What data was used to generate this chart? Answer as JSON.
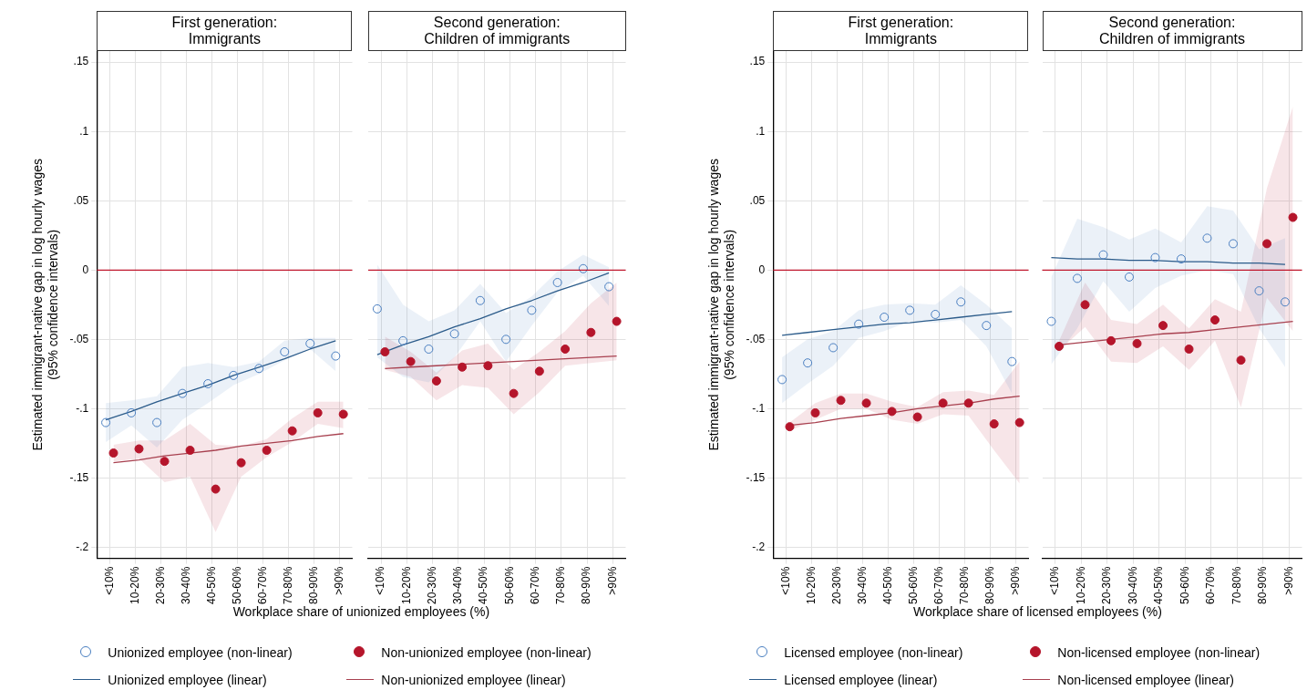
{
  "chart_data": [
    {
      "type": "scatter",
      "title": "First generation:\nImmigrants",
      "xlabel": "Workplace share of unionized employees (%)",
      "ylabel": "Estimated immigrant-native gap in log hourly wages\n(95% confidence intervals)",
      "ylim": [
        -0.208,
        0.158
      ],
      "categories": [
        "<10%",
        "10-20%",
        "20-30%",
        "30-40%",
        "40-50%",
        "50-60%",
        "60-70%",
        "70-80%",
        "80-90%",
        ">90%"
      ],
      "yticks": [
        {
          "value": 0.15,
          "label": ".15"
        },
        {
          "value": 0.1,
          "label": ".1"
        },
        {
          "value": 0.05,
          "label": ".05"
        },
        0,
        {
          "value": -0.05,
          "label": "-.05"
        },
        {
          "value": -0.1,
          "label": "-.1"
        },
        {
          "value": -0.15,
          "label": "-.15"
        },
        {
          "value": -0.2,
          "label": "-.2"
        }
      ],
      "grid": true,
      "legend": "bottom",
      "ref_lines": [
        {
          "axis": "y",
          "value": 0,
          "color": "#c0162c"
        }
      ],
      "series": [
        {
          "name": "Unionized employee (non-linear)",
          "type": "scatter",
          "marker": "circle",
          "color": "#4a7fc1",
          "values": [
            -0.11,
            -0.103,
            -0.11,
            -0.089,
            -0.082,
            -0.076,
            -0.071,
            -0.059,
            -0.053,
            -0.062
          ],
          "lower": [
            -0.124,
            -0.112,
            -0.128,
            -0.108,
            -0.096,
            -0.083,
            -0.075,
            -0.065,
            -0.057,
            -0.073
          ],
          "upper": [
            -0.096,
            -0.094,
            -0.091,
            -0.07,
            -0.067,
            -0.07,
            -0.066,
            -0.051,
            -0.049,
            -0.049
          ]
        },
        {
          "name": "Non-unionized employee (non-linear)",
          "type": "scatter",
          "marker": "circle",
          "color": "#b5152b",
          "values": [
            -0.132,
            -0.129,
            -0.138,
            -0.13,
            -0.158,
            -0.139,
            -0.13,
            -0.116,
            -0.103,
            -0.104
          ],
          "lower": [
            -0.138,
            -0.136,
            -0.153,
            -0.149,
            -0.189,
            -0.149,
            -0.135,
            -0.124,
            -0.111,
            -0.114
          ],
          "upper": [
            -0.126,
            -0.123,
            -0.123,
            -0.111,
            -0.126,
            -0.127,
            -0.122,
            -0.107,
            -0.095,
            -0.095
          ]
        },
        {
          "name": "Unionized employee (linear)",
          "type": "line",
          "marker": "none",
          "line_style": "solid",
          "color": "#2b5b8a",
          "values": [
            -0.108,
            -0.102,
            -0.095,
            -0.089,
            -0.083,
            -0.076,
            -0.07,
            -0.064,
            -0.057,
            -0.051
          ]
        },
        {
          "name": "Non-unionized employee (linear)",
          "type": "line",
          "marker": "none",
          "line_style": "solid",
          "color": "#a8404f",
          "values": [
            -0.139,
            -0.137,
            -0.134,
            -0.132,
            -0.13,
            -0.127,
            -0.125,
            -0.123,
            -0.12,
            -0.118
          ]
        }
      ]
    },
    {
      "type": "scatter",
      "title": "Second generation:\nChildren of immigrants",
      "ylim": [
        -0.208,
        0.158
      ],
      "tick_labels": "x",
      "categories": [
        "<10%",
        "10-20%",
        "20-30%",
        "30-40%",
        "40-50%",
        "50-60%",
        "60-70%",
        "70-80%",
        "80-90%",
        ">90%"
      ],
      "yticks": [
        {
          "value": 0.15,
          "label": null
        },
        {
          "value": 0.1,
          "label": null
        },
        {
          "value": 0.05,
          "label": null
        },
        {
          "value": 0,
          "label": null
        },
        {
          "value": -0.05,
          "label": null
        },
        {
          "value": -0.1,
          "label": null
        },
        {
          "value": -0.15,
          "label": null
        },
        {
          "value": -0.2,
          "label": null
        }
      ],
      "grid": true,
      "ref_lines": [
        {
          "axis": "y",
          "value": 0,
          "color": "#c0162c"
        }
      ],
      "series": [
        {
          "type": "scatter",
          "marker": "circle",
          "color": "#4a7fc1",
          "values": [
            -0.028,
            -0.051,
            -0.057,
            -0.046,
            -0.022,
            -0.05,
            -0.029,
            -0.009,
            0.001,
            -0.012
          ],
          "lower": [
            -0.063,
            -0.077,
            -0.081,
            -0.063,
            -0.037,
            -0.066,
            -0.04,
            -0.016,
            -0.004,
            -0.026
          ],
          "upper": [
            0.004,
            -0.025,
            -0.037,
            -0.029,
            -0.01,
            -0.031,
            -0.019,
            -0.001,
            0.011,
            0.002
          ]
        },
        {
          "type": "scatter",
          "marker": "circle",
          "color": "#b5152b",
          "values": [
            -0.059,
            -0.066,
            -0.08,
            -0.07,
            -0.069,
            -0.089,
            -0.073,
            -0.057,
            -0.045,
            -0.037
          ],
          "lower": [
            -0.072,
            -0.077,
            -0.094,
            -0.083,
            -0.085,
            -0.104,
            -0.088,
            -0.069,
            -0.067,
            -0.065
          ],
          "upper": [
            -0.048,
            -0.059,
            -0.074,
            -0.058,
            -0.053,
            -0.072,
            -0.059,
            -0.044,
            -0.024,
            -0.009
          ]
        },
        {
          "type": "line",
          "marker": "none",
          "line_style": "solid",
          "color": "#2b5b8a",
          "values": [
            -0.061,
            -0.054,
            -0.048,
            -0.041,
            -0.035,
            -0.028,
            -0.022,
            -0.015,
            -0.009,
            -0.002
          ]
        },
        {
          "type": "line",
          "marker": "none",
          "line_style": "solid",
          "color": "#a8404f",
          "values": [
            -0.071,
            -0.07,
            -0.069,
            -0.068,
            -0.067,
            -0.066,
            -0.065,
            -0.064,
            -0.063,
            -0.062
          ]
        }
      ]
    },
    {
      "type": "scatter",
      "title": "First generation:\nImmigrants",
      "xlabel": "Workplace share of licensed employees (%)",
      "ylabel": "Estimated immigrant-native gap in log hourly wages\n(95% confidence intervals)",
      "ylim": [
        -0.208,
        0.158
      ],
      "categories": [
        "<10%",
        "10-20%",
        "20-30%",
        "30-40%",
        "40-50%",
        "50-60%",
        "60-70%",
        "70-80%",
        "80-90%",
        ">90%"
      ],
      "yticks": [
        {
          "value": 0.15,
          "label": ".15"
        },
        {
          "value": 0.1,
          "label": ".1"
        },
        {
          "value": 0.05,
          "label": ".05"
        },
        0,
        {
          "value": -0.05,
          "label": "-.05"
        },
        {
          "value": -0.1,
          "label": "-.1"
        },
        {
          "value": -0.15,
          "label": "-.15"
        },
        {
          "value": -0.2,
          "label": "-.2"
        }
      ],
      "grid": true,
      "legend": "bottom",
      "ref_lines": [
        {
          "axis": "y",
          "value": 0,
          "color": "#c0162c"
        }
      ],
      "series": [
        {
          "name": "Licensed employee  (non-linear)",
          "type": "scatter",
          "marker": "circle",
          "color": "#4a7fc1",
          "values": [
            -0.079,
            -0.067,
            -0.056,
            -0.039,
            -0.034,
            -0.029,
            -0.032,
            -0.023,
            -0.04,
            -0.066
          ],
          "lower": [
            -0.096,
            -0.082,
            -0.069,
            -0.049,
            -0.044,
            -0.037,
            -0.038,
            -0.036,
            -0.055,
            -0.089
          ],
          "upper": [
            -0.063,
            -0.05,
            -0.044,
            -0.029,
            -0.025,
            -0.024,
            -0.025,
            -0.011,
            -0.025,
            -0.042
          ]
        },
        {
          "name": "Non-licensed employee  (non-linear)",
          "type": "scatter",
          "marker": "circle",
          "color": "#b5152b",
          "values": [
            -0.113,
            -0.103,
            -0.094,
            -0.096,
            -0.102,
            -0.106,
            -0.096,
            -0.096,
            -0.111,
            -0.11
          ],
          "lower": [
            -0.116,
            -0.108,
            -0.1,
            -0.1,
            -0.108,
            -0.111,
            -0.104,
            -0.105,
            -0.13,
            -0.154
          ],
          "upper": [
            -0.11,
            -0.096,
            -0.089,
            -0.089,
            -0.095,
            -0.099,
            -0.088,
            -0.087,
            -0.09,
            -0.066
          ]
        },
        {
          "name": "Licensed employee  (linear)",
          "type": "line",
          "marker": "none",
          "line_style": "solid",
          "color": "#2b5b8a",
          "values": [
            -0.047,
            -0.045,
            -0.043,
            -0.041,
            -0.039,
            -0.038,
            -0.036,
            -0.034,
            -0.032,
            -0.03
          ]
        },
        {
          "name": "Non-licensed employee  (linear)",
          "type": "line",
          "marker": "none",
          "line_style": "solid",
          "color": "#a8404f",
          "values": [
            -0.112,
            -0.11,
            -0.107,
            -0.105,
            -0.103,
            -0.1,
            -0.098,
            -0.096,
            -0.093,
            -0.091
          ]
        }
      ]
    },
    {
      "type": "scatter",
      "title": "Second generation:\nChildren of immigrants",
      "ylim": [
        -0.208,
        0.158
      ],
      "tick_labels": "x",
      "categories": [
        "<10%",
        "10-20%",
        "20-30%",
        "30-40%",
        "40-50%",
        "50-60%",
        "60-70%",
        "70-80%",
        "80-90%",
        ">90%"
      ],
      "yticks": [
        {
          "value": 0.15,
          "label": null
        },
        {
          "value": 0.1,
          "label": null
        },
        {
          "value": 0.05,
          "label": null
        },
        {
          "value": 0,
          "label": null
        },
        {
          "value": -0.05,
          "label": null
        },
        {
          "value": -0.1,
          "label": null
        },
        {
          "value": -0.15,
          "label": null
        },
        {
          "value": -0.2,
          "label": null
        }
      ],
      "grid": true,
      "ref_lines": [
        {
          "axis": "y",
          "value": 0,
          "color": "#c0162c"
        }
      ],
      "series": [
        {
          "type": "scatter",
          "marker": "circle",
          "color": "#4a7fc1",
          "values": [
            -0.037,
            -0.006,
            0.011,
            -0.005,
            0.009,
            0.008,
            0.023,
            0.019,
            -0.015,
            -0.023
          ],
          "lower": [
            -0.068,
            -0.042,
            -0.008,
            -0.03,
            -0.013,
            -0.004,
            0.0,
            -0.003,
            -0.042,
            -0.07
          ],
          "upper": [
            -0.005,
            0.037,
            0.031,
            0.022,
            0.03,
            0.02,
            0.046,
            0.043,
            0.015,
            0.023
          ]
        },
        {
          "type": "scatter",
          "marker": "circle",
          "color": "#b5152b",
          "values": [
            -0.055,
            -0.025,
            -0.051,
            -0.053,
            -0.04,
            -0.057,
            -0.036,
            -0.065,
            0.019,
            0.038
          ],
          "lower": [
            -0.058,
            -0.041,
            -0.066,
            -0.067,
            -0.055,
            -0.072,
            -0.051,
            -0.099,
            -0.02,
            -0.044
          ],
          "upper": [
            -0.051,
            -0.009,
            -0.036,
            -0.039,
            -0.025,
            -0.042,
            -0.021,
            -0.03,
            0.059,
            0.118
          ]
        },
        {
          "type": "line",
          "marker": "none",
          "line_style": "solid",
          "color": "#2b5b8a",
          "values": [
            0.009,
            0.008,
            0.008,
            0.007,
            0.007,
            0.006,
            0.006,
            0.005,
            0.005,
            0.004
          ]
        },
        {
          "type": "line",
          "marker": "none",
          "line_style": "solid",
          "color": "#a8404f",
          "values": [
            -0.054,
            -0.052,
            -0.05,
            -0.048,
            -0.046,
            -0.045,
            -0.043,
            -0.041,
            -0.039,
            -0.037
          ]
        }
      ]
    }
  ]
}
